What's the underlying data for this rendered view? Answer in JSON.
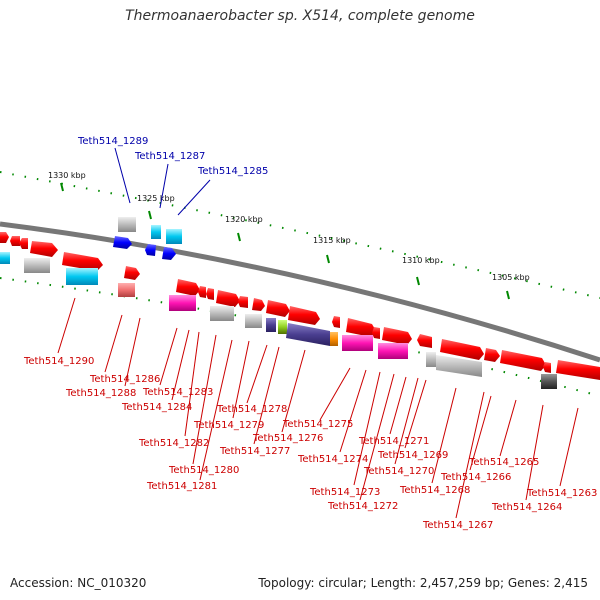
{
  "title": "Thermoanaerobacter sp. X514, complete genome",
  "accession": "Accession: NC_010320",
  "stats": "Topology: circular; Length: 2,457,259 bp; Genes: 2,415",
  "kbp_ticks": [
    "1330 kbp",
    "1325 kbp",
    "1320 kbp",
    "1315 kbp",
    "1310 kbp",
    "1305 kbp"
  ],
  "gene_labels": {
    "blue": [
      "Teth514_1289",
      "Teth514_1287",
      "Teth514_1285"
    ],
    "red": [
      "Teth514_1290",
      "Teth514_1286",
      "Teth514_1288",
      "Teth514_1283",
      "Teth514_1284",
      "Teth514_1282",
      "Teth514_1280",
      "Teth514_1281",
      "Teth514_1279",
      "Teth514_1278",
      "Teth514_1277",
      "Teth514_1276",
      "Teth514_1275",
      "Teth514_1274",
      "Teth514_1273",
      "Teth514_1272",
      "Teth514_1271",
      "Teth514_1270",
      "Teth514_1269",
      "Teth514_1268",
      "Teth514_1267",
      "Teth514_1266",
      "Teth514_1265",
      "Teth514_1264",
      "Teth514_1263"
    ]
  },
  "colors": {
    "forward_gene": "#ff0000",
    "reverse_gene_blue": "#0000ff",
    "backbone": "#808080",
    "label_red": "#cc0000",
    "label_blue": "#0000aa",
    "tick_green": "#008800"
  }
}
